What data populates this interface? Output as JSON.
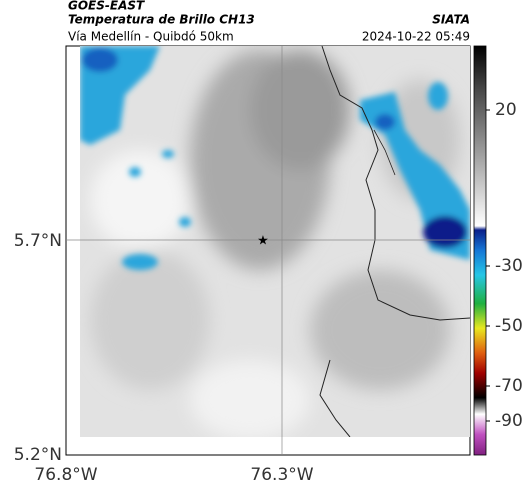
{
  "header": {
    "satellite": "GOES-EAST",
    "product": "Temperatura de Brillo CH13",
    "route": "Vía Medellín - Quibdó 50km",
    "source": "SIATA",
    "datetime": "2024-10-22 05:49"
  },
  "axes": {
    "lat_labels": [
      "5.7°N",
      "5.2°N"
    ],
    "lon_labels": [
      "76.8°W",
      "76.3°W"
    ]
  },
  "colorbar": {
    "ticks": [
      20,
      -30,
      -50,
      -70,
      -90
    ]
  }
}
